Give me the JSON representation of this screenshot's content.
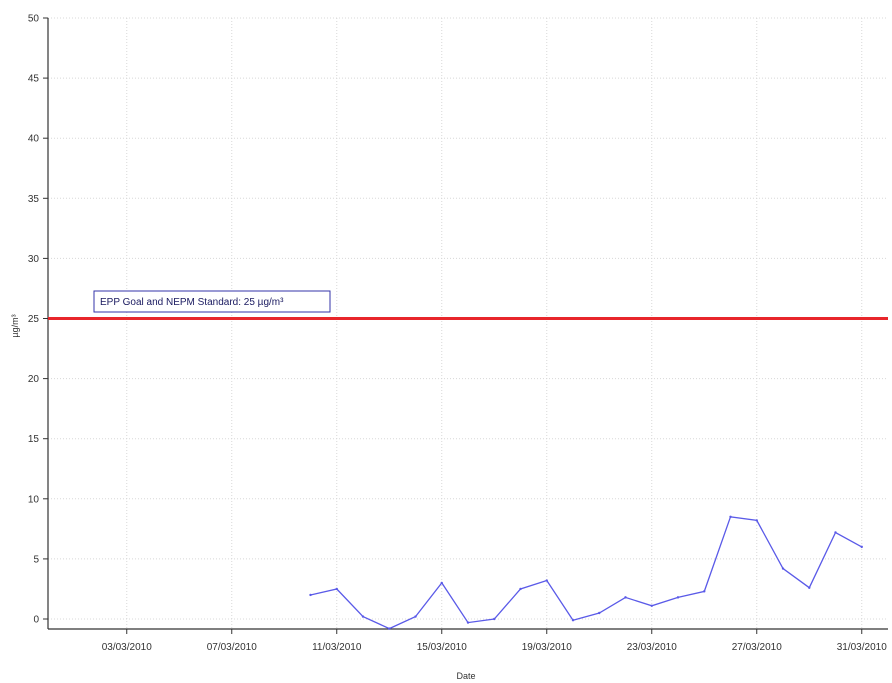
{
  "chart_data": {
    "type": "line",
    "xlabel": "Date",
    "ylabel": "µg/m³",
    "ylim": [
      0,
      50
    ],
    "y_ticks": [
      0,
      5,
      10,
      15,
      20,
      25,
      30,
      35,
      40,
      45,
      50
    ],
    "x_ticks": [
      "03/03/2010",
      "07/03/2010",
      "11/03/2010",
      "15/03/2010",
      "19/03/2010",
      "23/03/2010",
      "27/03/2010",
      "31/03/2010"
    ],
    "xlim": [
      "2010-02-28",
      "2010-04-01"
    ],
    "grid": true,
    "reference_line": {
      "value": 25,
      "label": "EPP Goal and NEPM Standard: 25 µg/m³",
      "color": "#e8262b"
    },
    "series": [
      {
        "color": "#5a5ae8",
        "x": [
          "2010-03-10",
          "2010-03-11",
          "2010-03-12",
          "2010-03-13",
          "2010-03-14",
          "2010-03-15",
          "2010-03-16",
          "2010-03-17",
          "2010-03-18",
          "2010-03-19",
          "2010-03-20",
          "2010-03-21",
          "2010-03-22",
          "2010-03-23",
          "2010-03-24",
          "2010-03-25",
          "2010-03-26",
          "2010-03-27",
          "2010-03-28",
          "2010-03-29",
          "2010-03-30",
          "2010-03-31"
        ],
        "y": [
          2.0,
          2.5,
          0.2,
          -0.8,
          0.2,
          3.0,
          -0.3,
          0.0,
          2.5,
          3.2,
          -0.1,
          0.5,
          1.8,
          1.1,
          1.8,
          2.3,
          8.5,
          8.2,
          4.2,
          2.6,
          7.2,
          6.0
        ]
      }
    ]
  }
}
